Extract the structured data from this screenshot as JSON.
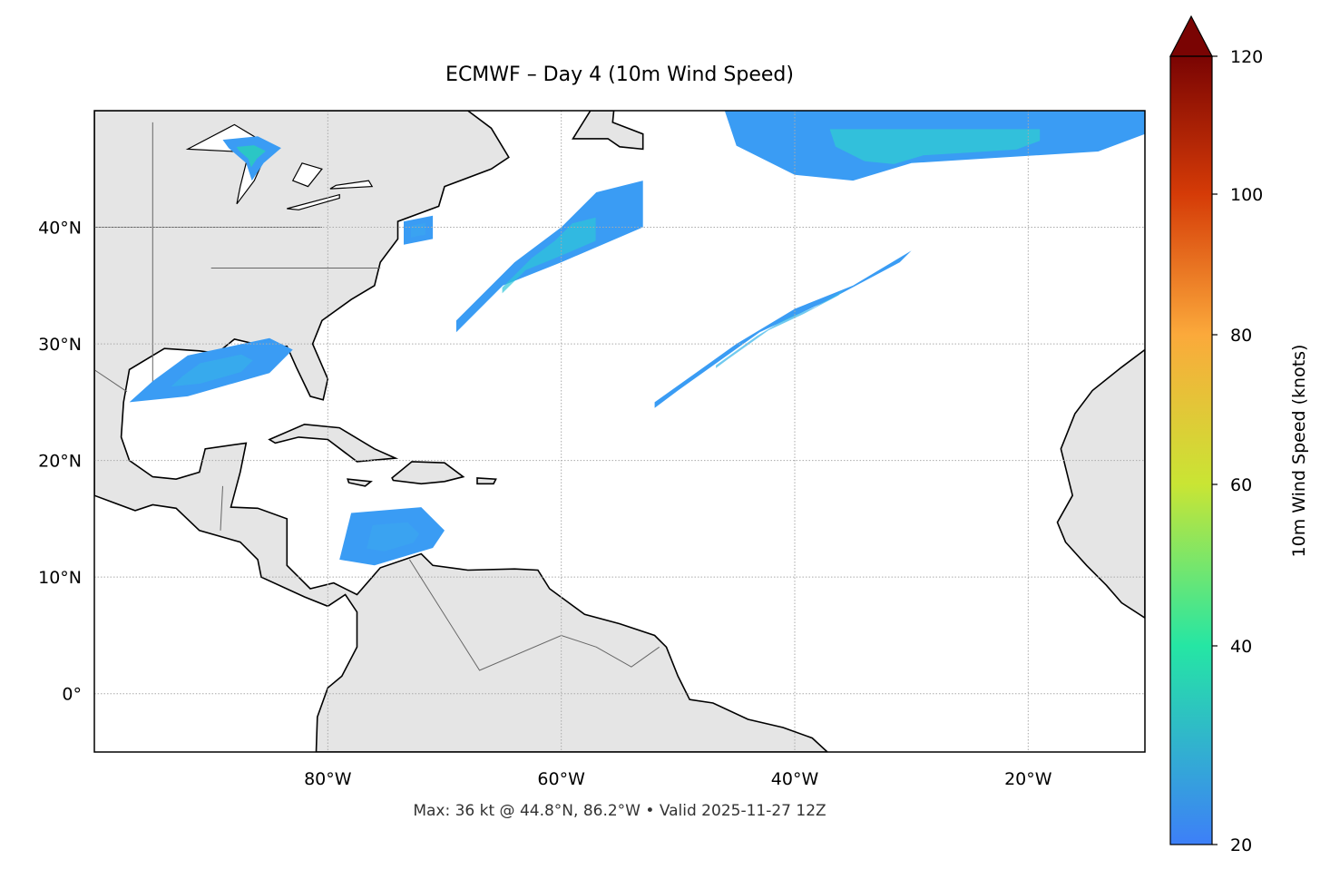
{
  "title": "ECMWF – Day 4 (10m Wind Speed)",
  "footer": "Max: 36 kt @ 44.8°N, 86.2°W • Valid 2025-11-27 12Z",
  "map": {
    "extent": {
      "lon": [
        -100,
        -10
      ],
      "lat": [
        -5,
        50
      ]
    },
    "lon_ticks": [
      {
        "value": -80,
        "label": "80°W"
      },
      {
        "value": -60,
        "label": "60°W"
      },
      {
        "value": -40,
        "label": "40°W"
      },
      {
        "value": -20,
        "label": "20°W"
      }
    ],
    "lat_ticks": [
      {
        "value": 40,
        "label": "40°N"
      },
      {
        "value": 30,
        "label": "30°N"
      },
      {
        "value": 20,
        "label": "20°N"
      },
      {
        "value": 10,
        "label": "10°N"
      },
      {
        "value": 0,
        "label": "0°"
      }
    ],
    "grid": true,
    "land_color": "#e5e5e5",
    "coast_color": "#000000",
    "border_color": "#666666"
  },
  "colorbar": {
    "label": "10m Wind Speed (knots)",
    "range": [
      20,
      120
    ],
    "extend": "max",
    "ticks": [
      {
        "value": 20,
        "label": "20"
      },
      {
        "value": 40,
        "label": "40"
      },
      {
        "value": 60,
        "label": "60"
      },
      {
        "value": 80,
        "label": "80"
      },
      {
        "value": 100,
        "label": "100"
      },
      {
        "value": 120,
        "label": "120"
      }
    ],
    "colors": [
      "#3d7ff8",
      "#25e6a4",
      "#c9e534",
      "#fba93b",
      "#d53b07",
      "#7a0403"
    ]
  }
}
